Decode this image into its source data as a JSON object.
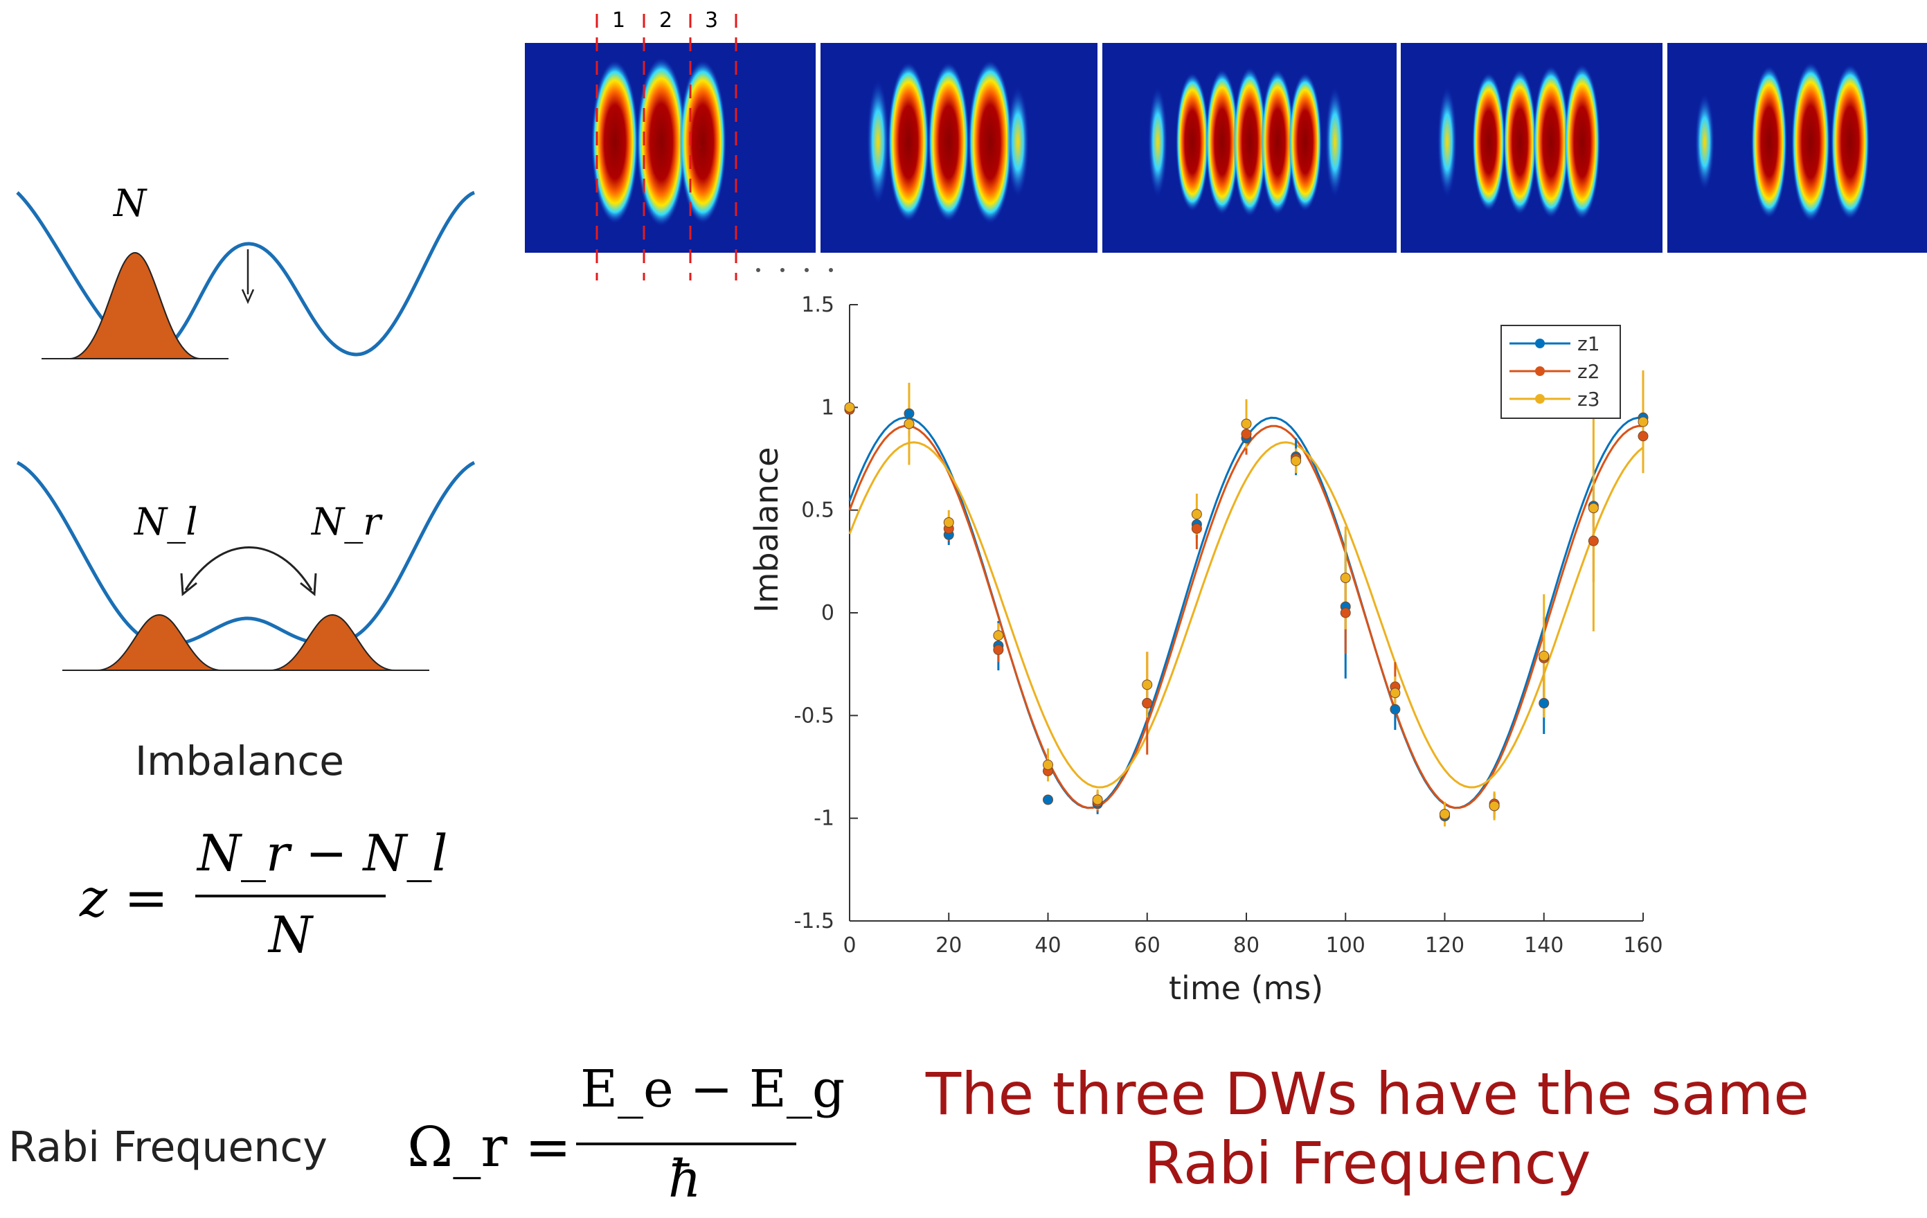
{
  "well_labels": {
    "single_N": "N",
    "left_N": "N_l",
    "right_N": "N_r"
  },
  "imbalance_caption": "Imbalance",
  "imbalance_formula": {
    "lhs": "z =",
    "numerator": "N_r − N_l",
    "denominator": "N"
  },
  "rabi_formula": {
    "label": "Rabi Frequency",
    "lhs": "Ω_r =",
    "numerator": "E_e − E_g",
    "denominator": "ħ"
  },
  "conclusion": {
    "line1": "The three DWs have the same",
    "line2": "Rabi Frequency",
    "color": "#a31515"
  },
  "image_strip": {
    "column_labels": [
      "1",
      "2",
      "3"
    ],
    "panel_count": 5
  },
  "chart_data": {
    "type": "scatter",
    "xlabel": "time (ms)",
    "ylabel": "Imbalance",
    "xlim": [
      0,
      160
    ],
    "ylim": [
      -1.5,
      1.5
    ],
    "xticks": [
      "0",
      "20",
      "40",
      "60",
      "80",
      "100",
      "120",
      "140",
      "160"
    ],
    "yticks": [
      "-1.5",
      "-1",
      "-0.5",
      "0",
      "0.5",
      "1",
      "1.5"
    ],
    "legend_position": "top-right",
    "grid": false,
    "x": [
      0,
      12,
      20,
      30,
      40,
      50,
      60,
      70,
      80,
      90,
      100,
      110,
      120,
      130,
      140,
      150,
      160
    ],
    "series": [
      {
        "name": "z1",
        "color": "#0072BD",
        "values": [
          0.99,
          0.97,
          0.38,
          -0.16,
          -0.91,
          -0.93,
          -0.44,
          0.43,
          0.85,
          0.76,
          0.03,
          -0.47,
          -0.99,
          -0.94,
          -0.44,
          0.52,
          0.95
        ],
        "errors": [
          0.01,
          0.04,
          0.05,
          0.12,
          0.02,
          0.05,
          0.06,
          0.07,
          0.08,
          0.09,
          0.35,
          0.1,
          0.03,
          0.06,
          0.15,
          0.1,
          0.05
        ],
        "fit": {
          "amplitude": 0.95,
          "period_ms": 74,
          "phase_deg": -55,
          "offset": 0.0
        }
      },
      {
        "name": "z2",
        "color": "#D95319",
        "values": [
          0.99,
          0.92,
          0.41,
          -0.18,
          -0.77,
          -0.92,
          -0.44,
          0.41,
          0.87,
          0.75,
          0.0,
          -0.36,
          -0.98,
          -0.93,
          -0.22,
          0.35,
          0.86
        ],
        "errors": [
          0.01,
          0.06,
          0.06,
          0.06,
          0.05,
          0.05,
          0.25,
          0.1,
          0.1,
          0.05,
          0.2,
          0.12,
          0.04,
          0.05,
          0.2,
          0.2,
          0.12
        ],
        "fit": {
          "amplitude": 0.93,
          "period_ms": 74,
          "phase_deg": -56,
          "offset": -0.02
        }
      },
      {
        "name": "z3",
        "color": "#EDB120",
        "values": [
          1.0,
          0.92,
          0.44,
          -0.11,
          -0.74,
          -0.91,
          -0.35,
          0.48,
          0.92,
          0.74,
          0.17,
          -0.39,
          -0.98,
          -0.94,
          -0.21,
          0.51,
          0.93
        ],
        "errors": [
          0.01,
          0.2,
          0.06,
          0.06,
          0.08,
          0.05,
          0.16,
          0.1,
          0.12,
          0.06,
          0.25,
          0.08,
          0.06,
          0.07,
          0.3,
          0.6,
          0.25
        ],
        "fit": {
          "amplitude": 0.84,
          "period_ms": 75,
          "phase_deg": -62,
          "offset": -0.01
        }
      }
    ]
  }
}
